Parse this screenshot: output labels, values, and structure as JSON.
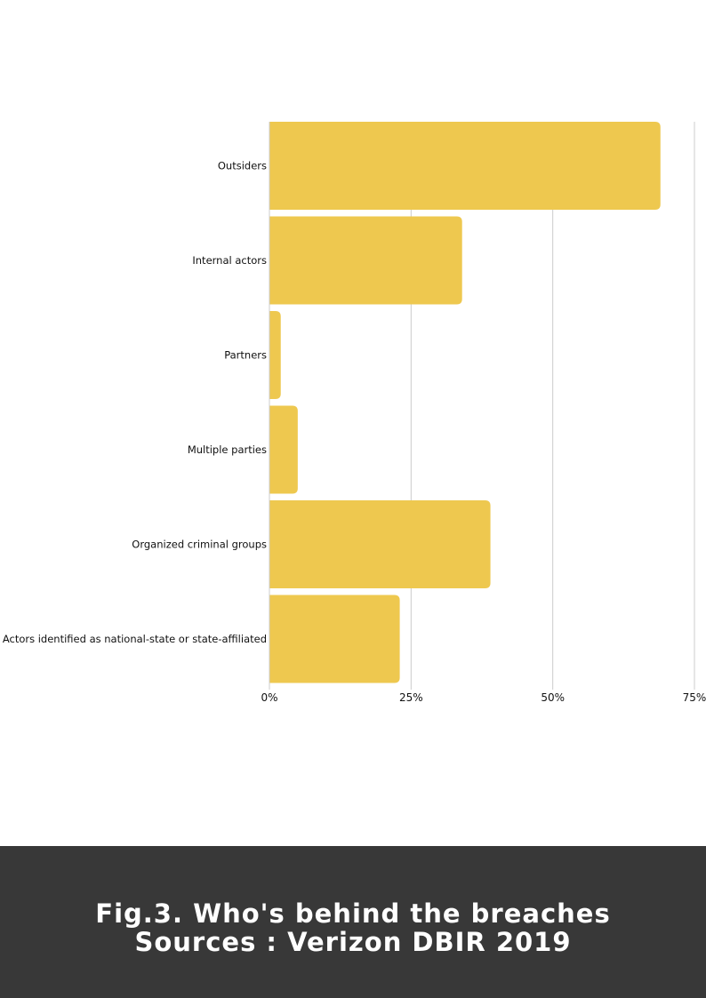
{
  "chart_data": {
    "type": "bar",
    "orientation": "horizontal",
    "categories": [
      "Outsiders",
      "Internal actors",
      "Partners",
      "Multiple parties",
      "Organized criminal groups",
      "Actors identified as national-state or state-affiliated"
    ],
    "values": [
      69,
      34,
      2,
      5,
      39,
      23
    ],
    "xlim": [
      0,
      75
    ],
    "x_ticks": [
      0,
      25,
      50,
      75
    ],
    "x_tick_labels": [
      "0%",
      "25%",
      "50%",
      "75%"
    ],
    "grid": true,
    "bar_color": "#EEC84F",
    "grid_color": "#CCCCCC"
  },
  "footer": {
    "caption_line1": "Fig.3. Who's behind the breaches",
    "caption_line2": "Sources : Verizon DBIR 2019",
    "background": "#383838"
  }
}
